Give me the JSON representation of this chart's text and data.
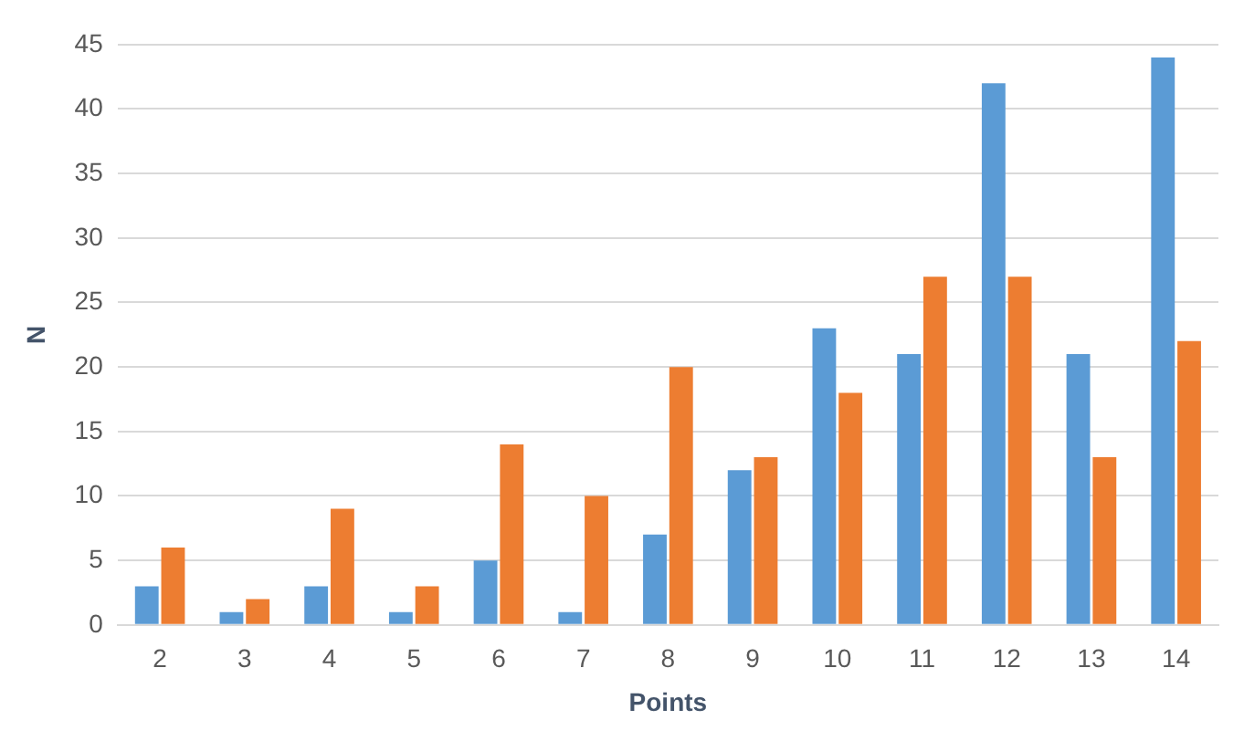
{
  "chart_data": {
    "type": "bar",
    "xlabel": "Points",
    "ylabel": "N",
    "categories": [
      "2",
      "3",
      "4",
      "5",
      "6",
      "7",
      "8",
      "9",
      "10",
      "11",
      "12",
      "13",
      "14"
    ],
    "series": [
      {
        "color": "#5b9bd5",
        "values": [
          3,
          1,
          3,
          1,
          5,
          1,
          7,
          12,
          23,
          21,
          42,
          21,
          44
        ]
      },
      {
        "color": "#ed7d31",
        "values": [
          6,
          2,
          9,
          3,
          14,
          10,
          20,
          13,
          18,
          27,
          27,
          13,
          22
        ]
      }
    ],
    "ylim": [
      0,
      45
    ],
    "yticks": [
      0,
      5,
      10,
      15,
      20,
      25,
      30,
      35,
      40,
      45
    ],
    "grid": "y",
    "legend": false
  }
}
